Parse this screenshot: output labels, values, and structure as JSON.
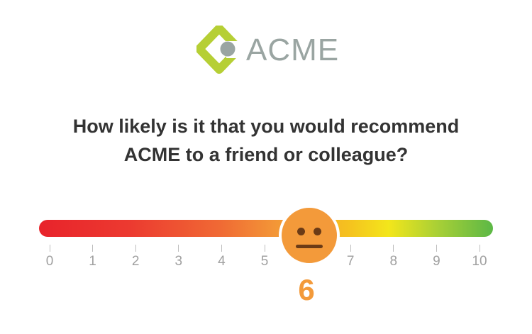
{
  "brand": {
    "name": "ACME",
    "logo_icon": "acme-diamond-logo",
    "colors": {
      "green": "#b6cf35",
      "gray": "#9aa5a2"
    }
  },
  "question": {
    "line1": "How likely is it that you would recommend",
    "line2": "ACME to a friend or colleague?"
  },
  "scale": {
    "min": 0,
    "max": 10,
    "labels": [
      "0",
      "1",
      "2",
      "3",
      "4",
      "5",
      "6",
      "7",
      "8",
      "9",
      "10"
    ],
    "selected": 6,
    "selected_label": "6",
    "thumb_icon": "neutral-face-icon",
    "colors": {
      "low": "#e8232b",
      "mid": "#f39637",
      "high": "#5cb846",
      "thumb": "#f39a3a"
    }
  }
}
